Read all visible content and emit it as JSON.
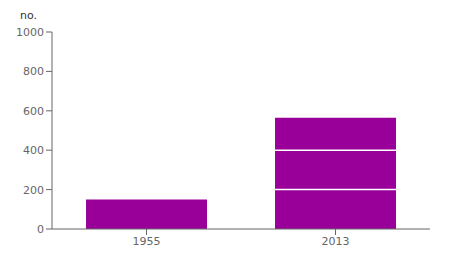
{
  "chart_data": {
    "type": "bar",
    "ylabel": "no.",
    "categories": [
      "1955",
      "2013"
    ],
    "values": [
      150,
      565
    ],
    "color": "#990099",
    "ylim": [
      0,
      1000
    ],
    "yticks": [
      0,
      200,
      400,
      600,
      800,
      1000
    ],
    "grid": true
  }
}
